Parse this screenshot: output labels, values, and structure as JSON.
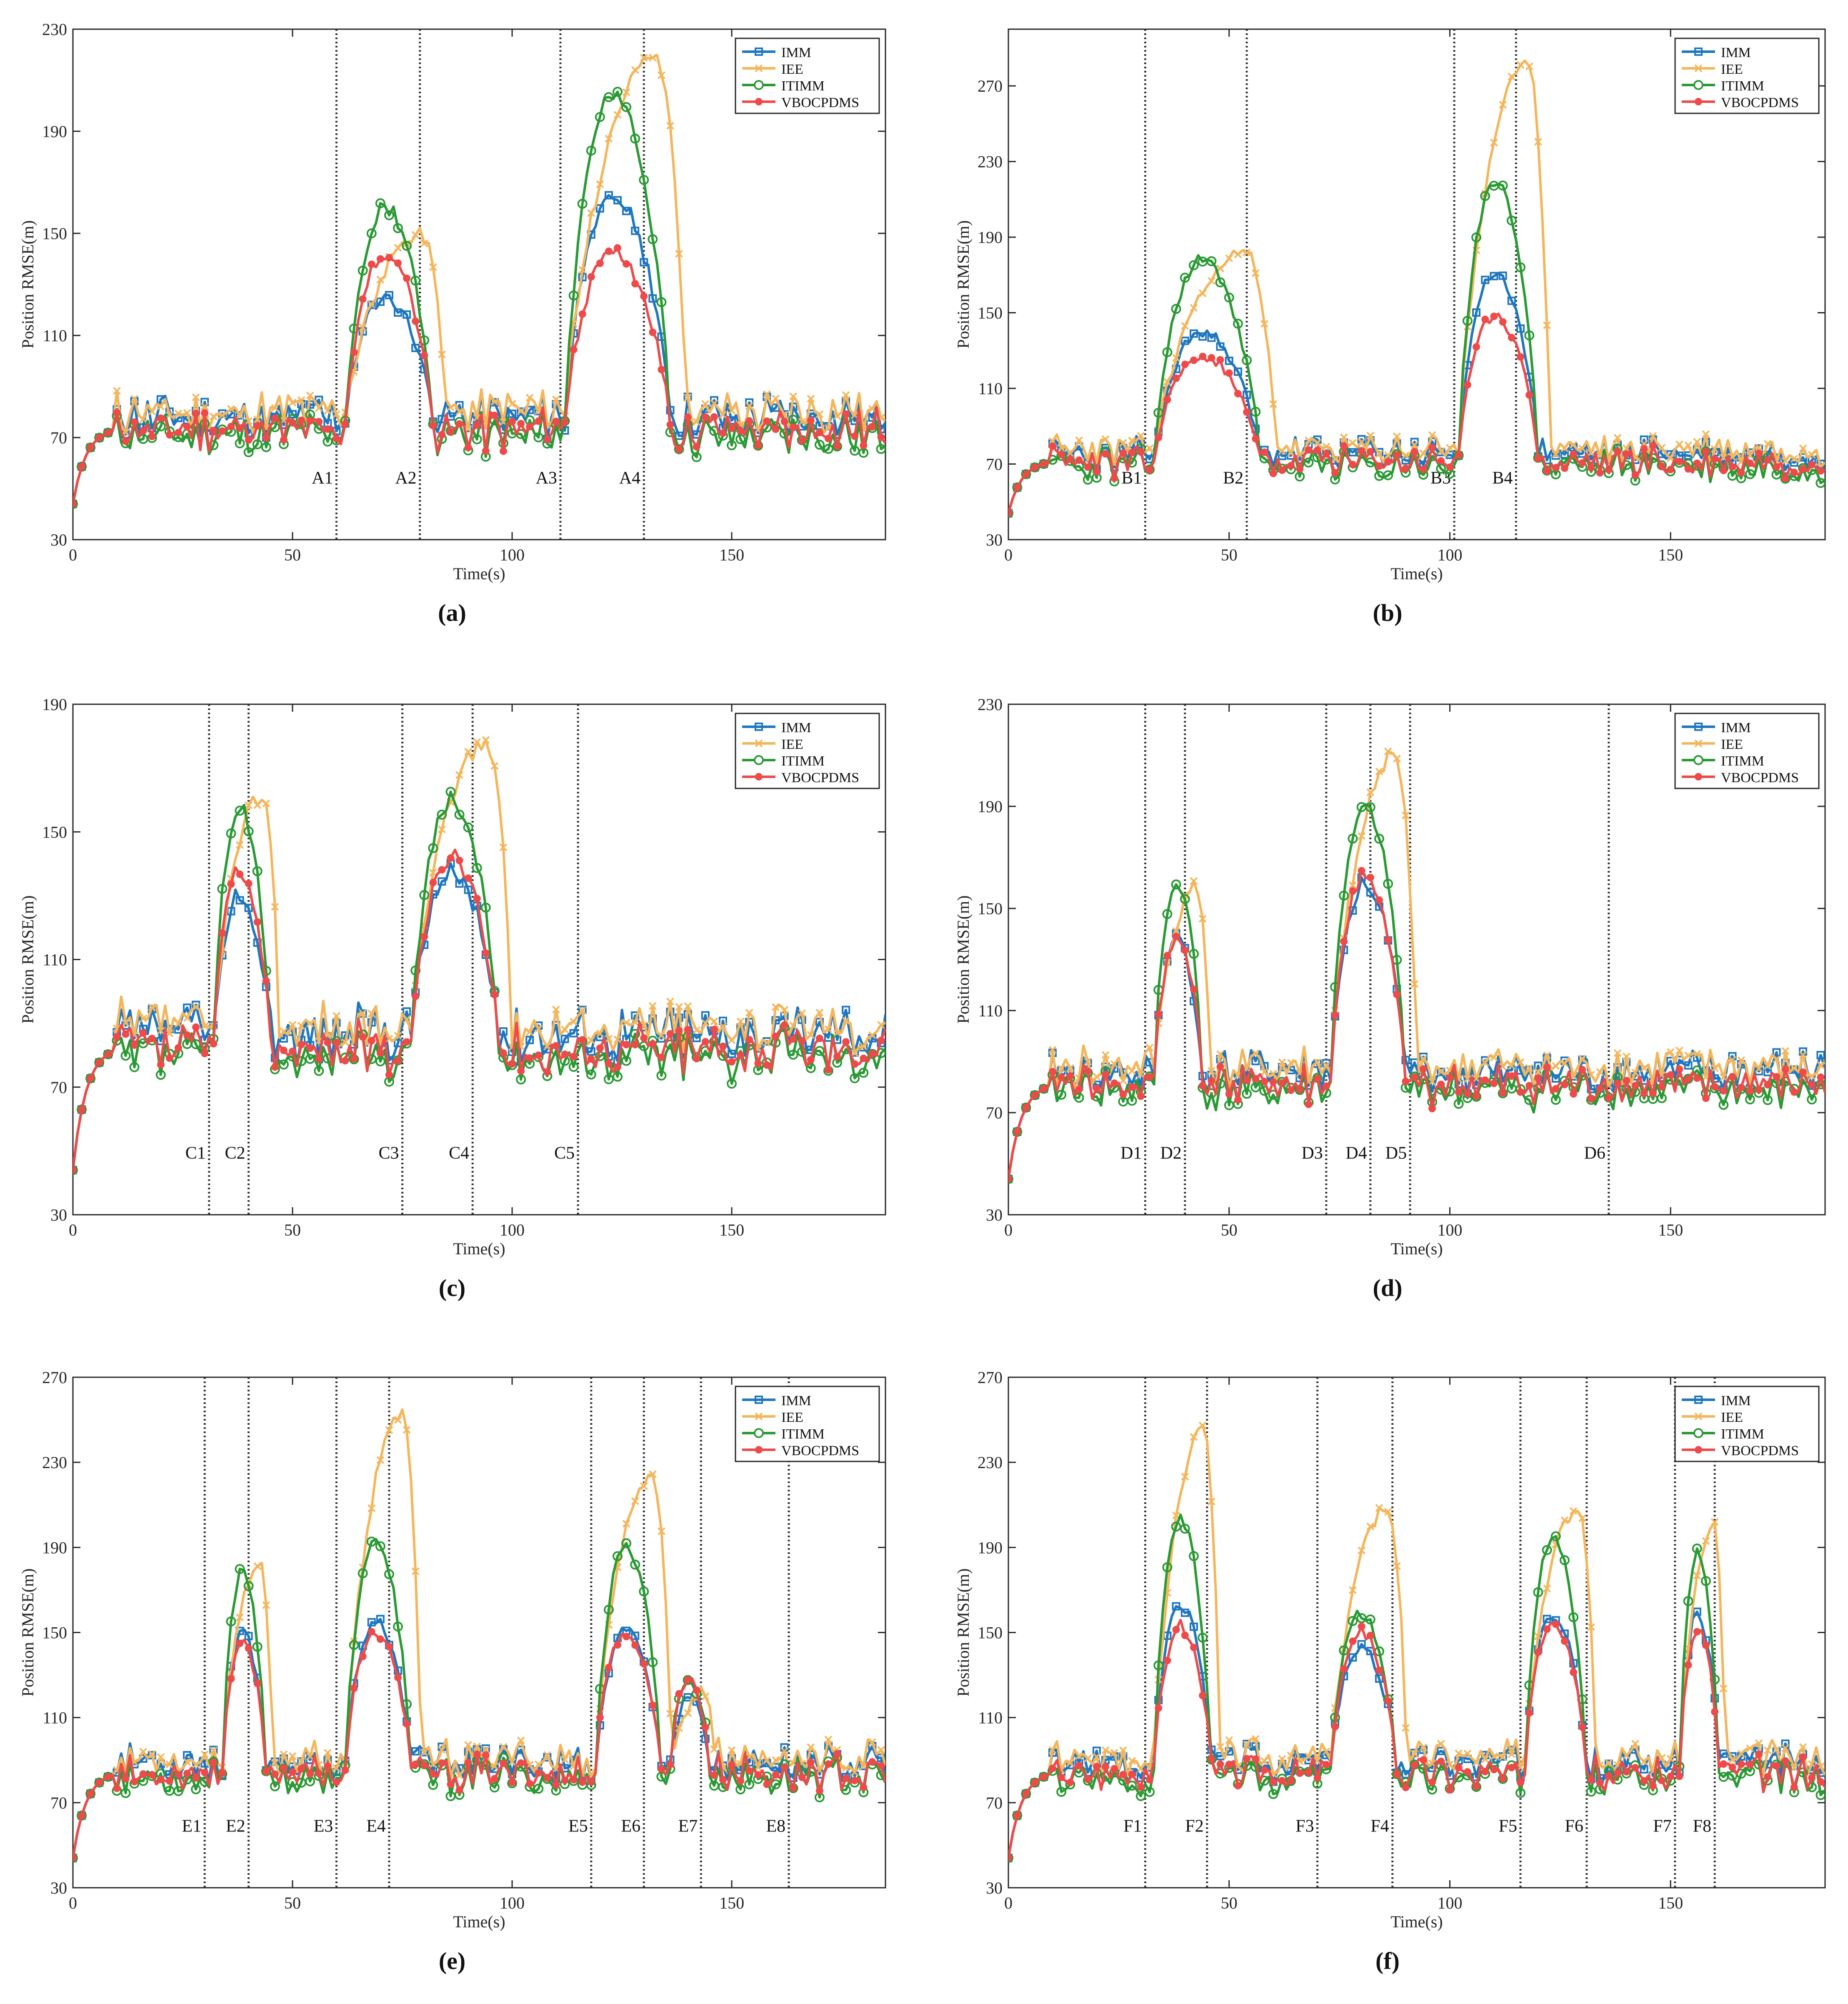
{
  "colors": {
    "IMM": "#1f77c0",
    "IEE": "#f4b65c",
    "ITIMM": "#2a9a34",
    "VBOCPDMS": "#ee4a4a"
  },
  "chart_data": [
    {
      "type": "line",
      "caption": "(a)",
      "xlabel": "Time(s)",
      "ylabel": "Position RMSE(m)",
      "xlim": [
        0,
        185
      ],
      "ylim": [
        30,
        230
      ],
      "yticks": [
        "30",
        "70",
        "110",
        "150",
        "190",
        "230"
      ],
      "xticks": [
        "0",
        "50",
        "100",
        "150"
      ],
      "legend": [
        "IMM",
        "IEE",
        "ITIMM",
        "VBOCPDMS"
      ],
      "markers": [
        {
          "label": "A1",
          "t": 60
        },
        {
          "label": "A2",
          "t": 79
        },
        {
          "label": "A3",
          "t": 111
        },
        {
          "label": "A4",
          "t": 130
        }
      ],
      "baseline": 74,
      "noise_seed": 11,
      "peaks": [
        {
          "start": 62,
          "end": 82,
          "IMM": 125,
          "IEE": 150,
          "ITIMM": 160,
          "VBOCPDMS": 142
        },
        {
          "start": 112,
          "end": 136,
          "IMM": 165,
          "IEE": 218,
          "ITIMM": 205,
          "VBOCPDMS": 142
        }
      ]
    },
    {
      "type": "line",
      "caption": "(b)",
      "xlabel": "Time(s)",
      "ylabel": "Position RMSE(m)",
      "xlim": [
        0,
        185
      ],
      "ylim": [
        30,
        300
      ],
      "yticks": [
        "30",
        "70",
        "110",
        "150",
        "190",
        "230",
        "270"
      ],
      "xticks": [
        "0",
        "50",
        "100",
        "150"
      ],
      "legend": [
        "IMM",
        "IEE",
        "ITIMM",
        "VBOCPDMS"
      ],
      "markers": [
        {
          "label": "B1",
          "t": 31
        },
        {
          "label": "B2",
          "t": 54
        },
        {
          "label": "B3",
          "t": 101
        },
        {
          "label": "B4",
          "t": 115
        }
      ],
      "baseline": 72,
      "noise_seed": 23,
      "peaks": [
        {
          "start": 33,
          "end": 57,
          "IMM": 140,
          "IEE": 183,
          "ITIMM": 178,
          "VBOCPDMS": 127
        },
        {
          "start": 102,
          "end": 120,
          "IMM": 172,
          "IEE": 283,
          "ITIMM": 220,
          "VBOCPDMS": 148
        }
      ]
    },
    {
      "type": "line",
      "caption": "(c)",
      "xlabel": "Time(s)",
      "ylabel": "Position RMSE(m)",
      "xlim": [
        0,
        185
      ],
      "ylim": [
        30,
        190
      ],
      "yticks": [
        "30",
        "70",
        "110",
        "150",
        "190"
      ],
      "xticks": [
        "0",
        "50",
        "100",
        "150"
      ],
      "legend": [
        "IMM",
        "IEE",
        "ITIMM",
        "VBOCPDMS"
      ],
      "markers": [
        {
          "label": "C1",
          "t": 31
        },
        {
          "label": "C2",
          "t": 40
        },
        {
          "label": "C3",
          "t": 75
        },
        {
          "label": "C4",
          "t": 91
        },
        {
          "label": "C5",
          "t": 115
        }
      ],
      "baseline": 83,
      "noise_seed": 37,
      "peaks": [
        {
          "start": 32,
          "end": 45,
          "IMM": 130,
          "IEE": 162,
          "ITIMM": 158,
          "VBOCPDMS": 138
        },
        {
          "start": 77,
          "end": 97,
          "IMM": 138,
          "IEE": 178,
          "ITIMM": 160,
          "VBOCPDMS": 142
        }
      ]
    },
    {
      "type": "line",
      "caption": "(d)",
      "xlabel": "Time(s)",
      "ylabel": "Position RMSE(m)",
      "xlim": [
        0,
        185
      ],
      "ylim": [
        30,
        230
      ],
      "yticks": [
        "30",
        "70",
        "110",
        "150",
        "190",
        "230"
      ],
      "xticks": [
        "0",
        "50",
        "100",
        "150"
      ],
      "legend": [
        "IMM",
        "IEE",
        "ITIMM",
        "VBOCPDMS"
      ],
      "markers": [
        {
          "label": "D1",
          "t": 31
        },
        {
          "label": "D2",
          "t": 40
        },
        {
          "label": "D3",
          "t": 72
        },
        {
          "label": "D4",
          "t": 82
        },
        {
          "label": "D5",
          "t": 91
        },
        {
          "label": "D6",
          "t": 136
        }
      ],
      "baseline": 82,
      "noise_seed": 41,
      "peaks": [
        {
          "start": 33,
          "end": 44,
          "IMM": 138,
          "IEE": 158,
          "ITIMM": 160,
          "VBOCPDMS": 138
        },
        {
          "start": 73,
          "end": 90,
          "IMM": 160,
          "IEE": 210,
          "ITIMM": 190,
          "VBOCPDMS": 163
        }
      ]
    },
    {
      "type": "line",
      "caption": "(e)",
      "xlabel": "Time(s)",
      "ylabel": "Position RMSE(m)",
      "xlim": [
        0,
        185
      ],
      "ylim": [
        30,
        270
      ],
      "yticks": [
        "30",
        "70",
        "110",
        "150",
        "190",
        "230",
        "270"
      ],
      "xticks": [
        "0",
        "50",
        "100",
        "150"
      ],
      "legend": [
        "IMM",
        "IEE",
        "ITIMM",
        "VBOCPDMS"
      ],
      "markers": [
        {
          "label": "E1",
          "t": 30
        },
        {
          "label": "E2",
          "t": 40
        },
        {
          "label": "E3",
          "t": 60
        },
        {
          "label": "E4",
          "t": 72
        },
        {
          "label": "E5",
          "t": 118
        },
        {
          "label": "E6",
          "t": 130
        },
        {
          "label": "E7",
          "t": 143
        },
        {
          "label": "E8",
          "t": 163
        }
      ],
      "baseline": 85,
      "noise_seed": 53,
      "peaks": [
        {
          "start": 34,
          "end": 44,
          "IMM": 150,
          "IEE": 182,
          "ITIMM": 178,
          "VBOCPDMS": 145
        },
        {
          "start": 62,
          "end": 77,
          "IMM": 155,
          "IEE": 253,
          "ITIMM": 193,
          "VBOCPDMS": 150
        },
        {
          "start": 119,
          "end": 134,
          "IMM": 150,
          "IEE": 224,
          "ITIMM": 191,
          "VBOCPDMS": 150
        },
        {
          "start": 136,
          "end": 145,
          "IMM": 120,
          "IEE": 122,
          "ITIMM": 130,
          "VBOCPDMS": 128
        }
      ]
    },
    {
      "type": "line",
      "caption": "(f)",
      "xlabel": "Time(s)",
      "ylabel": "Position RMSE(m)",
      "xlim": [
        0,
        185
      ],
      "ylim": [
        30,
        270
      ],
      "yticks": [
        "30",
        "70",
        "110",
        "150",
        "190",
        "230",
        "270"
      ],
      "xticks": [
        "0",
        "50",
        "100",
        "150"
      ],
      "legend": [
        "IMM",
        "IEE",
        "ITIMM",
        "VBOCPDMS"
      ],
      "markers": [
        {
          "label": "F1",
          "t": 31
        },
        {
          "label": "F2",
          "t": 45
        },
        {
          "label": "F3",
          "t": 70
        },
        {
          "label": "F4",
          "t": 87
        },
        {
          "label": "F5",
          "t": 116
        },
        {
          "label": "F6",
          "t": 131
        },
        {
          "label": "F7",
          "t": 151
        },
        {
          "label": "F8",
          "t": 160
        }
      ],
      "baseline": 85,
      "noise_seed": 67,
      "peaks": [
        {
          "start": 33,
          "end": 46,
          "IMM": 163,
          "IEE": 245,
          "ITIMM": 204,
          "VBOCPDMS": 153
        },
        {
          "start": 73,
          "end": 88,
          "IMM": 142,
          "IEE": 208,
          "ITIMM": 158,
          "VBOCPDMS": 150
        },
        {
          "start": 117,
          "end": 131,
          "IMM": 158,
          "IEE": 208,
          "ITIMM": 195,
          "VBOCPDMS": 155
        },
        {
          "start": 152,
          "end": 161,
          "IMM": 158,
          "IEE": 200,
          "ITIMM": 188,
          "VBOCPDMS": 152
        }
      ]
    }
  ]
}
